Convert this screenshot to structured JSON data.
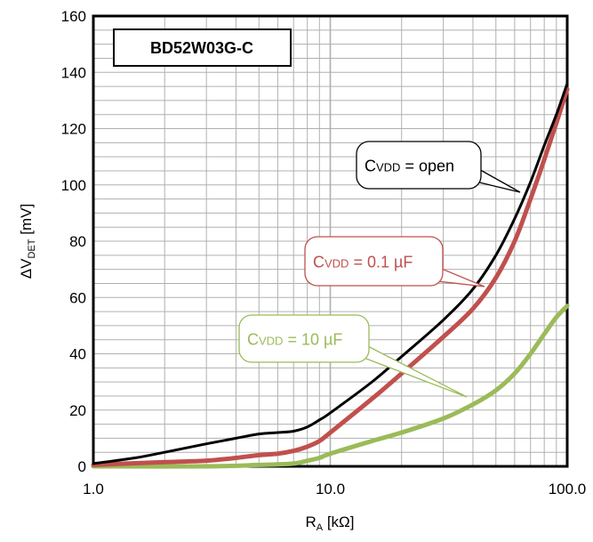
{
  "chart_data": {
    "type": "line",
    "title": "BD52W03G-C",
    "xlabel": {
      "main": "R",
      "sub": "A",
      "unit": " [kΩ]"
    },
    "ylabel": {
      "prefix": "ΔV",
      "sub": "DET",
      "unit": " [mV]"
    },
    "x_scale": "log",
    "xlim": [
      1,
      100
    ],
    "ylim": [
      0,
      160
    ],
    "x_ticks": [
      "1.0",
      "10.0",
      "100.0"
    ],
    "y_ticks": [
      "0",
      "20",
      "40",
      "60",
      "80",
      "100",
      "120",
      "140",
      "160"
    ],
    "grid": true,
    "series": [
      {
        "name": "CVDD = open",
        "label": {
          "c": "C",
          "sub": "VDD",
          "rest": " = open"
        },
        "color": "#000000",
        "x": [
          1.0,
          1.5,
          2,
          3,
          4,
          5,
          6,
          7,
          8,
          9,
          10,
          15,
          20,
          30,
          40,
          50,
          60,
          70,
          80,
          90,
          100
        ],
        "y": [
          1,
          3,
          5,
          8,
          10,
          11.5,
          12,
          12.5,
          14,
          16.5,
          19,
          30,
          39,
          52,
          63,
          75,
          88,
          101,
          114,
          125,
          136
        ]
      },
      {
        "name": "CVDD = 0.1 µF",
        "label": {
          "c": "C",
          "sub": "VDD",
          "rest": " = 0.1 µF"
        },
        "color": "#c0504d",
        "x": [
          1.0,
          2,
          3,
          4,
          5,
          6,
          7,
          8,
          9,
          10,
          15,
          20,
          30,
          40,
          50,
          60,
          70,
          80,
          90,
          100
        ],
        "y": [
          0.5,
          1.5,
          2,
          3,
          4,
          4.5,
          5.5,
          7,
          9,
          12,
          24,
          33,
          46,
          56,
          67,
          80,
          95,
          109,
          122,
          134
        ]
      },
      {
        "name": "CVDD = 10 µF",
        "label": {
          "c": "C",
          "sub": "VDD",
          "rest": " = 10 µF"
        },
        "color": "#9bbb59",
        "x": [
          1.0,
          3,
          5,
          7,
          8,
          9,
          10,
          15,
          20,
          30,
          40,
          50,
          60,
          70,
          80,
          90,
          100
        ],
        "y": [
          0,
          0,
          0.5,
          1,
          2,
          3,
          4.5,
          9,
          12,
          17,
          22,
          27,
          33,
          40,
          47,
          53,
          57
        ]
      }
    ]
  }
}
